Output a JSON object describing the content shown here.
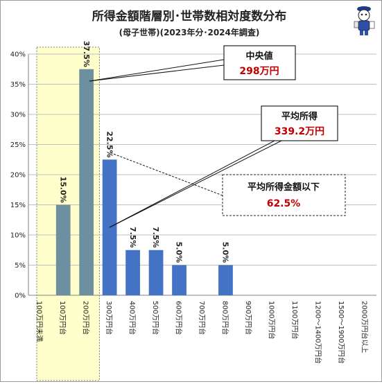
{
  "title": "所得金額階層別･世帯数相対度数分布",
  "subtitle": "(母子世帯)(2023年分･2024年調査)",
  "icon": "mascot-character-icon",
  "chart_data": {
    "type": "bar",
    "categories": [
      "100万円未満",
      "100万円台",
      "200万円台",
      "300万円台",
      "400万円台",
      "500万円台",
      "600万円台",
      "700万円台",
      "800万円台",
      "900万円台",
      "1000万円台",
      "1100万円台",
      "1200～1400万円台",
      "1500～1900万円台",
      "2000万円台以上"
    ],
    "values": [
      0,
      15.0,
      37.5,
      22.5,
      7.5,
      7.5,
      5.0,
      0,
      5.0,
      0,
      0,
      0,
      0,
      0,
      0
    ],
    "data_labels": [
      "",
      "15.0%",
      "37.5%",
      "22.5%",
      "7.5%",
      "7.5%",
      "5.0%",
      "",
      "5.0%",
      "",
      "",
      "",
      "",
      "",
      ""
    ],
    "highlighted_categories": [
      "100万円未満",
      "100万円台",
      "200万円台"
    ],
    "ylim": [
      0,
      40
    ],
    "yticks": [
      "0%",
      "5%",
      "10%",
      "15%",
      "20%",
      "25%",
      "30%",
      "35%",
      "40%"
    ],
    "bar_color": "#4472c4",
    "highlight_bar_color": "#6e8fa0",
    "highlight_fill": "#ffffcc",
    "grid": true,
    "annotations": [
      {
        "title": "中央値",
        "value": "298万円",
        "points_to_category": "200万円台"
      },
      {
        "title": "平均所得",
        "value": "339.2万円",
        "points_to_category": "300万円台"
      },
      {
        "title": "平均所得金額以下",
        "value": "62.5%",
        "points_to_category": "300万円台"
      }
    ]
  }
}
